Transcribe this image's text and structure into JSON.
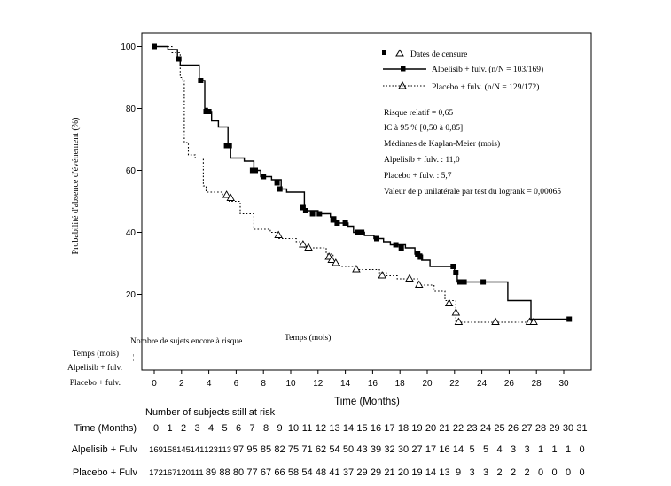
{
  "chart_data": {
    "type": "line",
    "xlabel": "Time (Months)",
    "ylabel": "Probabilité d'absence d'événement (%)",
    "xlim": [
      -1,
      32.5
    ],
    "ylim": [
      0,
      104
    ],
    "x_ticks": [
      0,
      2,
      4,
      6,
      8,
      10,
      12,
      14,
      16,
      18,
      20,
      22,
      24,
      26,
      28,
      30
    ],
    "y_ticks": [
      20,
      40,
      60,
      80,
      100
    ],
    "legend": {
      "placement": "top-right",
      "censor_label": "Dates de censure"
    },
    "series": [
      {
        "name": "Alpelisib + fulv. (n/N = 103/169)",
        "line_style": "solid",
        "marker": "square",
        "color": "#000000",
        "steps": [
          [
            0,
            100
          ],
          [
            1,
            99
          ],
          [
            1.7,
            96
          ],
          [
            1.9,
            94
          ],
          [
            3.3,
            89
          ],
          [
            3.7,
            80
          ],
          [
            3.9,
            79
          ],
          [
            4.2,
            76
          ],
          [
            4.7,
            74
          ],
          [
            5.4,
            68
          ],
          [
            5.6,
            64
          ],
          [
            6.6,
            63
          ],
          [
            7.3,
            60
          ],
          [
            7.8,
            58
          ],
          [
            8.6,
            57
          ],
          [
            9.3,
            54
          ],
          [
            9.7,
            53
          ],
          [
            11,
            47
          ],
          [
            12,
            46
          ],
          [
            12.9,
            45
          ],
          [
            13.3,
            43
          ],
          [
            14.2,
            42
          ],
          [
            14.6,
            40
          ],
          [
            15.4,
            39
          ],
          [
            16.1,
            38
          ],
          [
            16.8,
            37
          ],
          [
            17.3,
            36
          ],
          [
            18.4,
            35
          ],
          [
            19.1,
            33
          ],
          [
            19.6,
            31
          ],
          [
            20.2,
            29
          ],
          [
            22,
            27
          ],
          [
            22.2,
            24
          ],
          [
            24.1,
            24
          ],
          [
            25.9,
            18
          ],
          [
            27.6,
            12
          ],
          [
            30.5,
            12
          ]
        ],
        "censor_marks": [
          [
            0,
            100
          ],
          [
            1.8,
            96
          ],
          [
            3.4,
            89
          ],
          [
            3.8,
            79
          ],
          [
            4,
            79
          ],
          [
            5.3,
            68
          ],
          [
            5.5,
            68
          ],
          [
            7.2,
            60
          ],
          [
            7.4,
            60
          ],
          [
            8,
            58
          ],
          [
            9,
            56
          ],
          [
            9.2,
            54
          ],
          [
            10.9,
            48
          ],
          [
            11.1,
            47
          ],
          [
            11.6,
            46
          ],
          [
            12.1,
            46
          ],
          [
            13.1,
            44
          ],
          [
            13.4,
            43
          ],
          [
            14,
            43
          ],
          [
            14.9,
            40
          ],
          [
            15.2,
            40
          ],
          [
            16.3,
            38
          ],
          [
            17.7,
            36
          ],
          [
            18.1,
            35
          ],
          [
            19.3,
            33
          ],
          [
            19.5,
            32
          ],
          [
            21.9,
            29
          ],
          [
            22.1,
            27
          ],
          [
            22.4,
            24
          ],
          [
            22.7,
            24
          ],
          [
            24.1,
            24
          ],
          [
            30.4,
            12
          ]
        ]
      },
      {
        "name": "Placebo + fulv. (n/N = 129/172)",
        "line_style": "dotted",
        "marker": "triangle",
        "color": "#000000",
        "steps": [
          [
            0,
            100
          ],
          [
            1.3,
            98
          ],
          [
            1.9,
            90
          ],
          [
            2.1,
            89
          ],
          [
            2.2,
            69
          ],
          [
            2.5,
            65
          ],
          [
            3,
            64
          ],
          [
            3.6,
            55
          ],
          [
            3.8,
            53
          ],
          [
            5,
            52
          ],
          [
            5.5,
            50
          ],
          [
            6.3,
            46
          ],
          [
            7.3,
            41
          ],
          [
            8.5,
            40
          ],
          [
            9.1,
            38
          ],
          [
            10.4,
            37
          ],
          [
            11,
            35
          ],
          [
            12.6,
            33
          ],
          [
            13.1,
            30
          ],
          [
            13.6,
            29
          ],
          [
            14.8,
            28
          ],
          [
            16.5,
            27
          ],
          [
            17,
            26
          ],
          [
            17.8,
            25
          ],
          [
            19.3,
            23
          ],
          [
            20.5,
            21
          ],
          [
            21.3,
            18
          ],
          [
            22.1,
            11
          ],
          [
            27.8,
            11
          ]
        ],
        "censor_marks": [
          [
            5.3,
            52
          ],
          [
            5.6,
            51
          ],
          [
            9.1,
            39
          ],
          [
            10.9,
            36
          ],
          [
            11.3,
            35
          ],
          [
            12.8,
            32
          ],
          [
            13,
            31
          ],
          [
            13.3,
            30
          ],
          [
            14.8,
            28
          ],
          [
            16.7,
            26
          ],
          [
            18.7,
            25
          ],
          [
            19.4,
            23
          ],
          [
            21.6,
            17
          ],
          [
            22.1,
            14
          ],
          [
            22.3,
            11
          ],
          [
            25,
            11
          ],
          [
            27.5,
            11
          ],
          [
            27.8,
            11
          ]
        ]
      }
    ]
  },
  "stats": {
    "lines": [
      "Risque relatif = 0,65",
      "IC à 95 % [0,50 à 0,85]",
      "Médianes de Kaplan-Meier (mois)",
      "Alpelisib + fulv. : 11,0",
      "Placebo + fulv. : 5,7",
      "Valeur de p unilatérale par test du logrank = 0,00065"
    ]
  },
  "risk_table_fr": {
    "title": "Nombre de sujets encore à risque",
    "time_label": "Temps (mois)",
    "time_header": "Temps (mois)",
    "row1": "Alpelisib + fulv.",
    "row2": "Placebo + fulv."
  },
  "risk_table_en": {
    "title": "Number of subjects still at risk",
    "time_label": "Time (Months)",
    "times": [
      "0",
      "1",
      "2",
      "3",
      "4",
      "5",
      "6",
      "7",
      "8",
      "9",
      "10",
      "11",
      "12",
      "13",
      "14",
      "15",
      "16",
      "17",
      "18",
      "19",
      "20",
      "21",
      "22",
      "23",
      "24",
      "25",
      "26",
      "27",
      "28",
      "29",
      "30",
      "31"
    ],
    "rows": [
      {
        "label": "Alpelisib + Fulv",
        "values": [
          "169",
          "158",
          "145",
          "141",
          "123",
          "113",
          "97",
          "95",
          "85",
          "82",
          "75",
          "71",
          "62",
          "54",
          "50",
          "43",
          "39",
          "32",
          "30",
          "27",
          "17",
          "16",
          "14",
          "5",
          "5",
          "4",
          "3",
          "3",
          "1",
          "1",
          "1",
          "0"
        ]
      },
      {
        "label": "Placebo + Fulv",
        "values": [
          "172",
          "167",
          "120",
          "111",
          "89",
          "88",
          "80",
          "77",
          "67",
          "66",
          "58",
          "54",
          "48",
          "41",
          "37",
          "29",
          "29",
          "21",
          "20",
          "19",
          "14",
          "13",
          "9",
          "3",
          "3",
          "2",
          "2",
          "2",
          "0",
          "0",
          "0",
          "0"
        ]
      }
    ]
  }
}
